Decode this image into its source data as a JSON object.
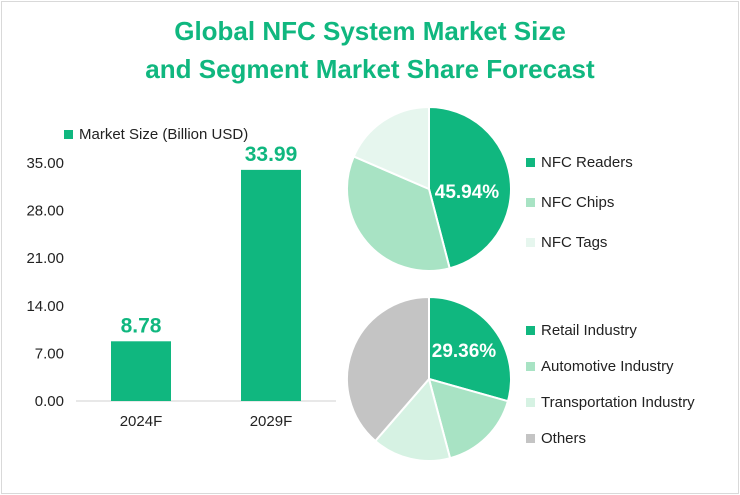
{
  "title_line1": "Global NFC System Market Size",
  "title_line2": "and Segment Market Share Forecast",
  "chart_data": [
    {
      "type": "bar",
      "legend": "Market Size (Billion USD)",
      "categories": [
        "2024F",
        "2029F"
      ],
      "values": [
        8.78,
        33.99
      ],
      "value_labels": [
        "8.78",
        "33.99"
      ],
      "y_ticks": [
        "0.00",
        "7.00",
        "14.00",
        "21.00",
        "28.00",
        "35.00"
      ],
      "ylim": [
        0,
        35
      ],
      "color": "#10b77f",
      "label_color": "#10b77f",
      "legend_position": "top-left"
    },
    {
      "type": "pie",
      "labels": [
        "NFC Readers",
        "NFC Chips",
        "NFC Tags"
      ],
      "values": [
        45.94,
        35.56,
        18.5
      ],
      "shown_label": "45.94%",
      "colors": [
        "#10b77f",
        "#a8e3c4",
        "#e6f6ee"
      ],
      "legend_position": "right"
    },
    {
      "type": "pie",
      "labels": [
        "Retail Industry",
        "Automotive Industry",
        "Transportation Industry",
        "Others"
      ],
      "values": [
        29.36,
        16.5,
        15.5,
        38.64
      ],
      "shown_label": "29.36%",
      "colors": [
        "#10b77f",
        "#a8e3c4",
        "#d6f2e3",
        "#c4c4c4"
      ],
      "legend_position": "right"
    }
  ]
}
